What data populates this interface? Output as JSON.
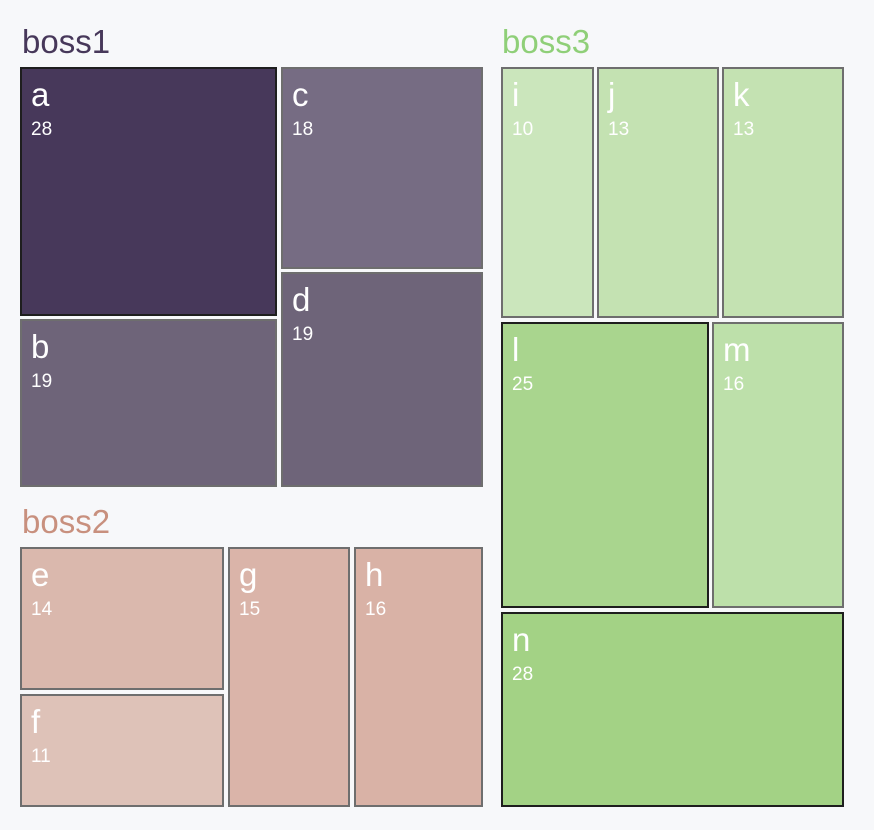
{
  "chart_data": {
    "type": "treemap",
    "groups": [
      {
        "name": "boss1",
        "color": "#47385a",
        "children": [
          {
            "name": "a",
            "value": 28,
            "color": "#47385a"
          },
          {
            "name": "b",
            "value": 19,
            "color": "#6e6479"
          },
          {
            "name": "c",
            "value": 18,
            "color": "#766c83"
          },
          {
            "name": "d",
            "value": 19,
            "color": "#6e6479"
          }
        ]
      },
      {
        "name": "boss2",
        "color": "#c8907e",
        "children": [
          {
            "name": "e",
            "value": 14,
            "color": "#dab8ad"
          },
          {
            "name": "f",
            "value": 11,
            "color": "#dec2b8"
          },
          {
            "name": "g",
            "value": 15,
            "color": "#dab4a9"
          },
          {
            "name": "h",
            "value": 16,
            "color": "#d9b2a6"
          }
        ]
      },
      {
        "name": "boss3",
        "color": "#8fcf78",
        "children": [
          {
            "name": "i",
            "value": 10,
            "color": "#cbe6bc"
          },
          {
            "name": "j",
            "value": 13,
            "color": "#c4e2b2"
          },
          {
            "name": "k",
            "value": 13,
            "color": "#c4e2b2"
          },
          {
            "name": "l",
            "value": 25,
            "color": "#a9d58e"
          },
          {
            "name": "m",
            "value": 16,
            "color": "#bde0aa"
          },
          {
            "name": "n",
            "value": 28,
            "color": "#a3d285"
          }
        ]
      }
    ]
  }
}
